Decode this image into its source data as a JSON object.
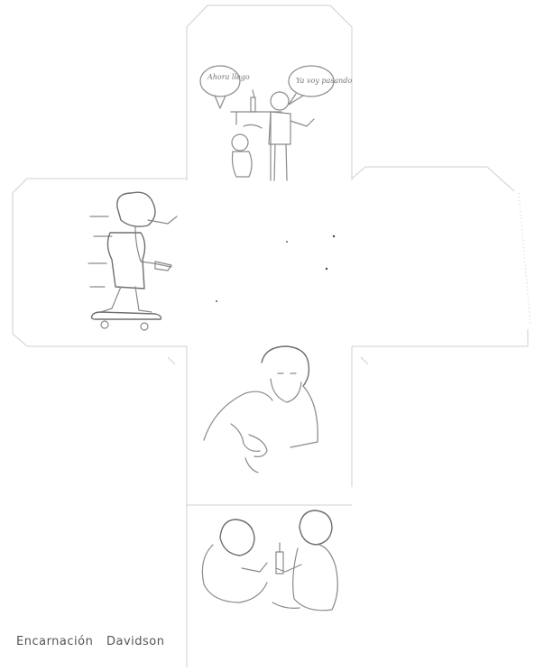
{
  "credit": {
    "first": "Encarnación",
    "second": "Davidson"
  },
  "bubbles": {
    "left": "Ahora llego",
    "right": "Ya voy pasando"
  },
  "panels": {
    "top": "toasting-figures-illustration",
    "left": "skateboard-piggyback-illustration",
    "center_bottom": "bearded-man-illustration",
    "bottom": "children-playing-illustration"
  }
}
